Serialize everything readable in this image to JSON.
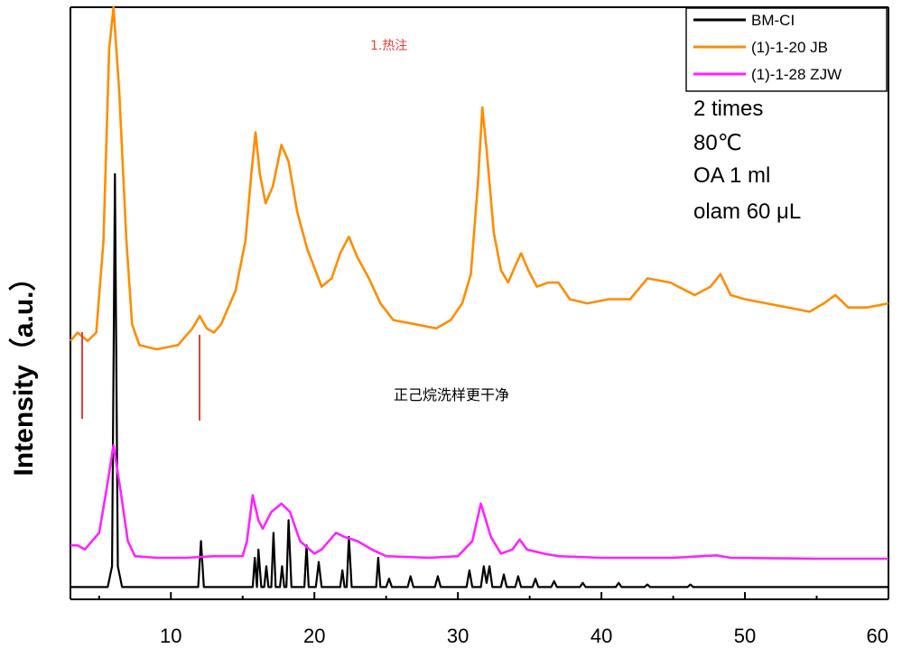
{
  "chart_data": {
    "type": "line",
    "ylabel": "Intensity（a.u.）",
    "xlabel": "",
    "xlim": [
      3,
      60
    ],
    "x_ticks": [
      10,
      20,
      30,
      40,
      50,
      60
    ],
    "grid": false,
    "legend_position": "top-right",
    "series": [
      {
        "name": "BM-CI",
        "color": "#000000",
        "offset": 0.0,
        "points": [
          [
            3,
            0.05
          ],
          [
            5.6,
            0.05
          ],
          [
            5.9,
            0.3
          ],
          [
            6.1,
            5.0
          ],
          [
            6.3,
            0.3
          ],
          [
            6.6,
            0.05
          ],
          [
            11.9,
            0.05
          ],
          [
            12.1,
            0.6
          ],
          [
            12.3,
            0.05
          ],
          [
            15.7,
            0.05
          ],
          [
            15.85,
            0.4
          ],
          [
            16.0,
            0.05
          ],
          [
            16.1,
            0.5
          ],
          [
            16.3,
            0.05
          ],
          [
            16.5,
            0.05
          ],
          [
            16.65,
            0.3
          ],
          [
            16.8,
            0.05
          ],
          [
            17.0,
            0.05
          ],
          [
            17.15,
            0.7
          ],
          [
            17.3,
            0.05
          ],
          [
            17.6,
            0.05
          ],
          [
            17.75,
            0.3
          ],
          [
            17.9,
            0.05
          ],
          [
            18.05,
            0.05
          ],
          [
            18.2,
            0.85
          ],
          [
            18.4,
            0.05
          ],
          [
            19.3,
            0.05
          ],
          [
            19.45,
            0.55
          ],
          [
            19.6,
            0.05
          ],
          [
            20.1,
            0.05
          ],
          [
            20.3,
            0.35
          ],
          [
            20.5,
            0.05
          ],
          [
            21.8,
            0.05
          ],
          [
            21.95,
            0.25
          ],
          [
            22.1,
            0.05
          ],
          [
            22.25,
            0.05
          ],
          [
            22.4,
            0.65
          ],
          [
            22.6,
            0.05
          ],
          [
            24.3,
            0.05
          ],
          [
            24.45,
            0.4
          ],
          [
            24.6,
            0.05
          ],
          [
            25.0,
            0.05
          ],
          [
            25.2,
            0.15
          ],
          [
            25.4,
            0.05
          ],
          [
            26.5,
            0.05
          ],
          [
            26.7,
            0.18
          ],
          [
            26.9,
            0.05
          ],
          [
            28.4,
            0.05
          ],
          [
            28.6,
            0.18
          ],
          [
            28.8,
            0.05
          ],
          [
            30.6,
            0.05
          ],
          [
            30.8,
            0.25
          ],
          [
            31.0,
            0.05
          ],
          [
            31.6,
            0.05
          ],
          [
            31.8,
            0.3
          ],
          [
            32.0,
            0.1
          ],
          [
            32.2,
            0.3
          ],
          [
            32.4,
            0.05
          ],
          [
            33.0,
            0.05
          ],
          [
            33.2,
            0.2
          ],
          [
            33.4,
            0.05
          ],
          [
            34.0,
            0.05
          ],
          [
            34.2,
            0.18
          ],
          [
            34.4,
            0.05
          ],
          [
            35.2,
            0.05
          ],
          [
            35.4,
            0.15
          ],
          [
            35.6,
            0.05
          ],
          [
            36.5,
            0.05
          ],
          [
            36.7,
            0.12
          ],
          [
            36.9,
            0.05
          ],
          [
            38.5,
            0.05
          ],
          [
            38.7,
            0.1
          ],
          [
            38.9,
            0.05
          ],
          [
            41.0,
            0.05
          ],
          [
            41.2,
            0.1
          ],
          [
            41.4,
            0.05
          ],
          [
            43.0,
            0.05
          ],
          [
            43.2,
            0.08
          ],
          [
            43.4,
            0.05
          ],
          [
            46.0,
            0.05
          ],
          [
            46.2,
            0.08
          ],
          [
            46.4,
            0.05
          ],
          [
            60,
            0.05
          ]
        ]
      },
      {
        "name": "(1)-1-28 ZJW",
        "color": "#ff22ff",
        "offset": 0.0,
        "points": [
          [
            3,
            0.55
          ],
          [
            3.5,
            0.55
          ],
          [
            4.0,
            0.5
          ],
          [
            5.0,
            0.7
          ],
          [
            5.5,
            1.2
          ],
          [
            6.0,
            1.75
          ],
          [
            6.5,
            1.2
          ],
          [
            7.0,
            0.6
          ],
          [
            7.5,
            0.42
          ],
          [
            9,
            0.4
          ],
          [
            11,
            0.4
          ],
          [
            13,
            0.42
          ],
          [
            15,
            0.42
          ],
          [
            15.3,
            0.6
          ],
          [
            15.7,
            1.15
          ],
          [
            16.1,
            0.85
          ],
          [
            16.4,
            0.75
          ],
          [
            17.0,
            0.95
          ],
          [
            17.7,
            1.05
          ],
          [
            18.3,
            0.95
          ],
          [
            19.0,
            0.6
          ],
          [
            20.0,
            0.45
          ],
          [
            20.5,
            0.5
          ],
          [
            21.5,
            0.7
          ],
          [
            22.1,
            0.65
          ],
          [
            23.0,
            0.6
          ],
          [
            24.0,
            0.5
          ],
          [
            25.0,
            0.42
          ],
          [
            28,
            0.4
          ],
          [
            30,
            0.42
          ],
          [
            31.0,
            0.6
          ],
          [
            31.6,
            1.05
          ],
          [
            32.3,
            0.65
          ],
          [
            33.0,
            0.45
          ],
          [
            33.8,
            0.5
          ],
          [
            34.3,
            0.62
          ],
          [
            34.8,
            0.5
          ],
          [
            36.0,
            0.45
          ],
          [
            37.0,
            0.42
          ],
          [
            40,
            0.4
          ],
          [
            45,
            0.4
          ],
          [
            48.0,
            0.43
          ],
          [
            49.0,
            0.4
          ],
          [
            55,
            0.39
          ],
          [
            60,
            0.39
          ]
        ]
      },
      {
        "name": "(1)-1-20 JB",
        "color": "#ff8c00",
        "offset": 0.0,
        "points": [
          [
            3,
            3.0
          ],
          [
            3.5,
            3.1
          ],
          [
            4.2,
            3.0
          ],
          [
            4.8,
            3.1
          ],
          [
            5.3,
            4.2
          ],
          [
            5.7,
            6.5
          ],
          [
            6.0,
            7.0
          ],
          [
            6.4,
            6.0
          ],
          [
            6.9,
            4.2
          ],
          [
            7.3,
            3.2
          ],
          [
            7.8,
            2.95
          ],
          [
            9,
            2.9
          ],
          [
            10.5,
            2.95
          ],
          [
            11.5,
            3.15
          ],
          [
            12.0,
            3.3
          ],
          [
            12.5,
            3.15
          ],
          [
            13.0,
            3.1
          ],
          [
            13.5,
            3.2
          ],
          [
            14.5,
            3.6
          ],
          [
            15.2,
            4.2
          ],
          [
            15.6,
            5.0
          ],
          [
            15.9,
            5.5
          ],
          [
            16.2,
            5.0
          ],
          [
            16.6,
            4.65
          ],
          [
            17.1,
            4.85
          ],
          [
            17.7,
            5.35
          ],
          [
            18.2,
            5.15
          ],
          [
            18.8,
            4.55
          ],
          [
            19.5,
            4.1
          ],
          [
            20.5,
            3.65
          ],
          [
            21.2,
            3.75
          ],
          [
            21.8,
            4.05
          ],
          [
            22.4,
            4.25
          ],
          [
            23.0,
            4.0
          ],
          [
            23.8,
            3.75
          ],
          [
            24.6,
            3.45
          ],
          [
            25.5,
            3.25
          ],
          [
            27,
            3.2
          ],
          [
            28.5,
            3.15
          ],
          [
            29.5,
            3.25
          ],
          [
            30.3,
            3.45
          ],
          [
            30.9,
            3.8
          ],
          [
            31.4,
            4.9
          ],
          [
            31.7,
            5.8
          ],
          [
            32.0,
            5.3
          ],
          [
            32.5,
            4.3
          ],
          [
            33.0,
            3.85
          ],
          [
            33.5,
            3.7
          ],
          [
            34.0,
            3.9
          ],
          [
            34.4,
            4.05
          ],
          [
            34.9,
            3.85
          ],
          [
            35.5,
            3.65
          ],
          [
            36.3,
            3.7
          ],
          [
            37.0,
            3.7
          ],
          [
            37.8,
            3.5
          ],
          [
            39,
            3.45
          ],
          [
            40.5,
            3.5
          ],
          [
            42,
            3.5
          ],
          [
            43.2,
            3.75
          ],
          [
            44.8,
            3.7
          ],
          [
            46.5,
            3.55
          ],
          [
            47.6,
            3.65
          ],
          [
            48.3,
            3.8
          ],
          [
            49,
            3.55
          ],
          [
            50,
            3.5
          ],
          [
            51.5,
            3.45
          ],
          [
            53,
            3.4
          ],
          [
            54.5,
            3.35
          ],
          [
            55.5,
            3.45
          ],
          [
            56.3,
            3.55
          ],
          [
            57.2,
            3.4
          ],
          [
            58.5,
            3.4
          ],
          [
            60,
            3.45
          ]
        ]
      }
    ]
  },
  "notes": [
    "2 times",
    "80℃",
    "OA 1 ml",
    "olam 60 μL"
  ],
  "annotations": {
    "red_text": "1.热注",
    "black_text": "正己烷洗样更干净"
  },
  "colors": {
    "annotation_red": "#e0413c",
    "marker_red": "#e0413c"
  }
}
